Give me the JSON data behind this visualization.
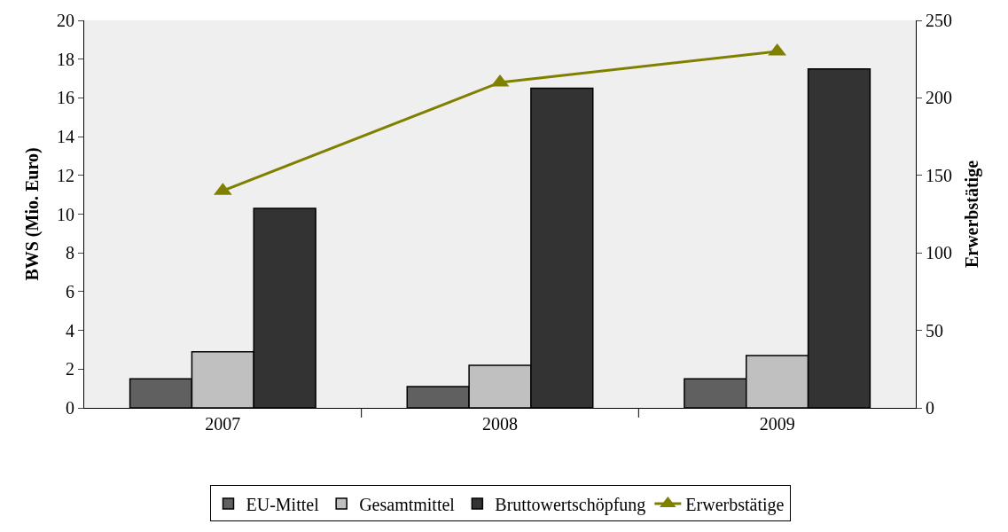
{
  "chart_data": {
    "type": "bar",
    "categories": [
      "2007",
      "2008",
      "2009"
    ],
    "ylabel": "BWS (Mio. Euro)",
    "y2label": "Erwerbstätige",
    "ylim": [
      0,
      20
    ],
    "yticks": [
      0,
      2,
      4,
      6,
      8,
      10,
      12,
      14,
      16,
      18,
      20
    ],
    "y2lim": [
      0,
      250
    ],
    "y2ticks": [
      0,
      50,
      100,
      150,
      200,
      250
    ],
    "legend": "bottom",
    "grid": false,
    "series": [
      {
        "name": "EU-Mittel",
        "color": "#606060",
        "values": [
          1.5,
          1.1,
          1.5
        ]
      },
      {
        "name": "Gesamtmittel",
        "color": "#c0c0c0",
        "values": [
          2.9,
          2.2,
          2.7
        ]
      },
      {
        "name": "Bruttowertschöpfung",
        "color": "#333333",
        "values": [
          10.3,
          16.5,
          17.5
        ]
      },
      {
        "name": "Erwerbstätige",
        "type": "line",
        "axis": "y2",
        "marker": "triangle",
        "color": "#808000",
        "values": [
          140,
          210,
          230
        ]
      }
    ]
  }
}
